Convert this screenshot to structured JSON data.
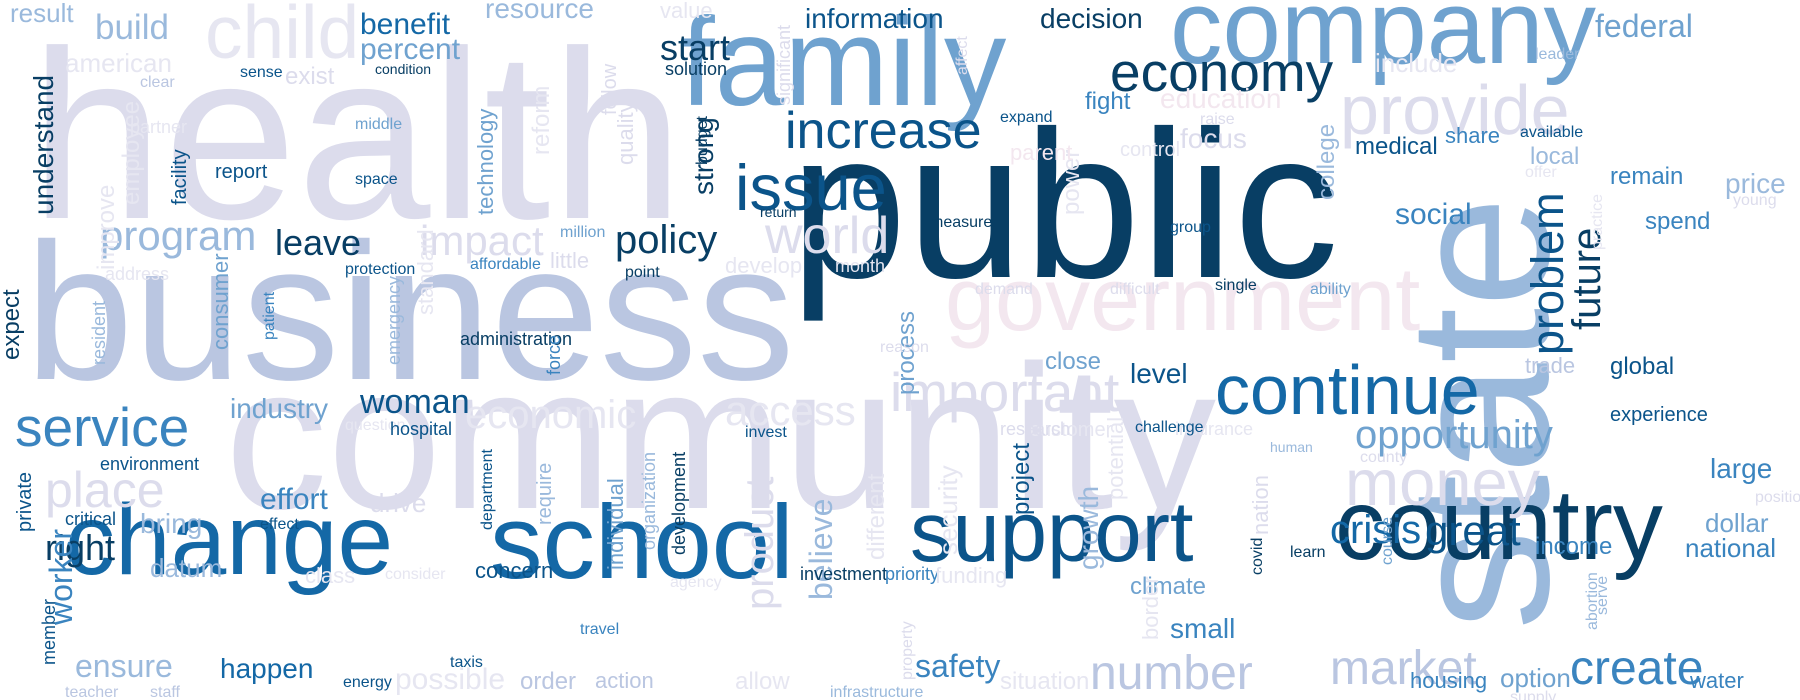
{
  "palette": {
    "navy": "#083e64",
    "dark_blue": "#0b548a",
    "blue": "#1468a6",
    "mid_blue": "#3a84bf",
    "steel_blue": "#6fa2cf",
    "light_blue": "#9ab9dc",
    "periwinkle": "#bac6e1",
    "lavender": "#dcdcec",
    "pale_lavender": "#e6e6f1",
    "pink": "#f3e7ef"
  },
  "words": [
    "health",
    "business",
    "community",
    "public",
    "state",
    "family",
    "company",
    "government",
    "change",
    "school",
    "country",
    "support",
    "continue",
    "child",
    "provide",
    "important",
    "money",
    "service",
    "issue",
    "increase",
    "world",
    "impact",
    "economy",
    "student",
    "place",
    "market",
    "number",
    "create",
    "program",
    "policy",
    "protect",
    "problem",
    "future",
    "economic",
    "access",
    "opportunity",
    "great",
    "crisis",
    "start",
    "benefit",
    "percent",
    "information",
    "decision",
    "federal",
    "resource",
    "build",
    "result",
    "american",
    "understand",
    "woman",
    "industry",
    "leave",
    "social",
    "right",
    "worker",
    "effort",
    "bring",
    "datum",
    "ensure",
    "happen",
    "safety",
    "small",
    "large",
    "dollar",
    "national",
    "income",
    "water",
    "price",
    "financial",
    "reduce",
    "receive",
    "local",
    "remain",
    "spend",
    "global",
    "trade",
    "experience",
    "medical",
    "share",
    "available",
    "focus",
    "education",
    "include",
    "fight",
    "level",
    "close",
    "security",
    "product",
    "believe",
    "different",
    "process",
    "technology",
    "strong",
    "quality",
    "individual",
    "development",
    "concern",
    "growth",
    "climate",
    "project",
    "nation",
    "border",
    "customer",
    "insurance",
    "investment",
    "priority",
    "funding",
    "order",
    "action",
    "possible",
    "allow",
    "situation",
    "housing",
    "option",
    "value",
    "solution",
    "condition",
    "sense",
    "exist",
    "clear",
    "partner",
    "middle",
    "report",
    "space",
    "facility",
    "employee",
    "improve",
    "address",
    "resident",
    "expect",
    "consumer",
    "patient",
    "emergency",
    "standard",
    "administration",
    "force",
    "affordable",
    "protection",
    "million",
    "little",
    "point",
    "develop",
    "month",
    "return",
    "reform",
    "significant",
    "budget",
    "follow",
    "measure",
    "group",
    "single",
    "ability",
    "demand",
    "difficult",
    "reason",
    "power",
    "college",
    "control",
    "parent",
    "raise",
    "expand",
    "affect",
    "leader",
    "offer",
    "young",
    "practice",
    "abortion",
    "serve",
    "position",
    "learn",
    "course",
    "covid",
    "potential",
    "challenge",
    "human",
    "county",
    "research",
    "question",
    "hospital",
    "invest",
    "environment",
    "private",
    "critical",
    "effect",
    "drive",
    "class",
    "consider",
    "department",
    "agency",
    "require",
    "organization",
    "member",
    "teacher",
    "staff",
    "energy",
    "taxis",
    "travel",
    "property",
    "infrastructure",
    "supply"
  ]
}
